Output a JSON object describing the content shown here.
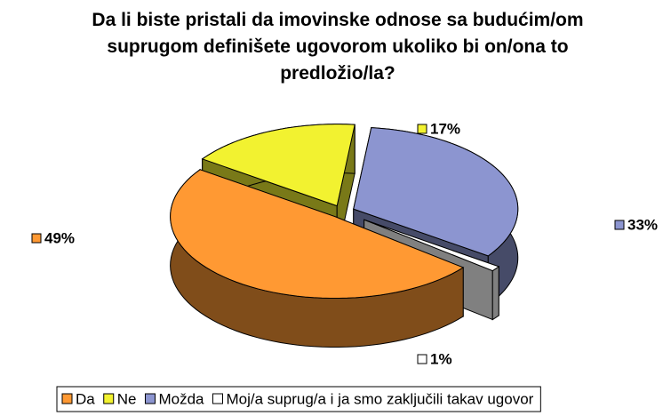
{
  "chart_data": {
    "type": "pie3d",
    "title": "Da li biste pristali da imovinske odnose sa budućim/om suprugom definišete ugovorom ukoliko bi on/ona to predložio/la?",
    "categories": [
      "Da",
      "Ne",
      "Možda",
      "Moj/a suprug/a i ja smo zaključili takav ugovor"
    ],
    "values": [
      49,
      17,
      33,
      1
    ],
    "value_labels": [
      "49%",
      "17%",
      "33%",
      "1%"
    ],
    "colors": [
      "#ff9933",
      "#f2f230",
      "#8c95d0",
      "#ffffff"
    ],
    "legend": "bottom"
  }
}
